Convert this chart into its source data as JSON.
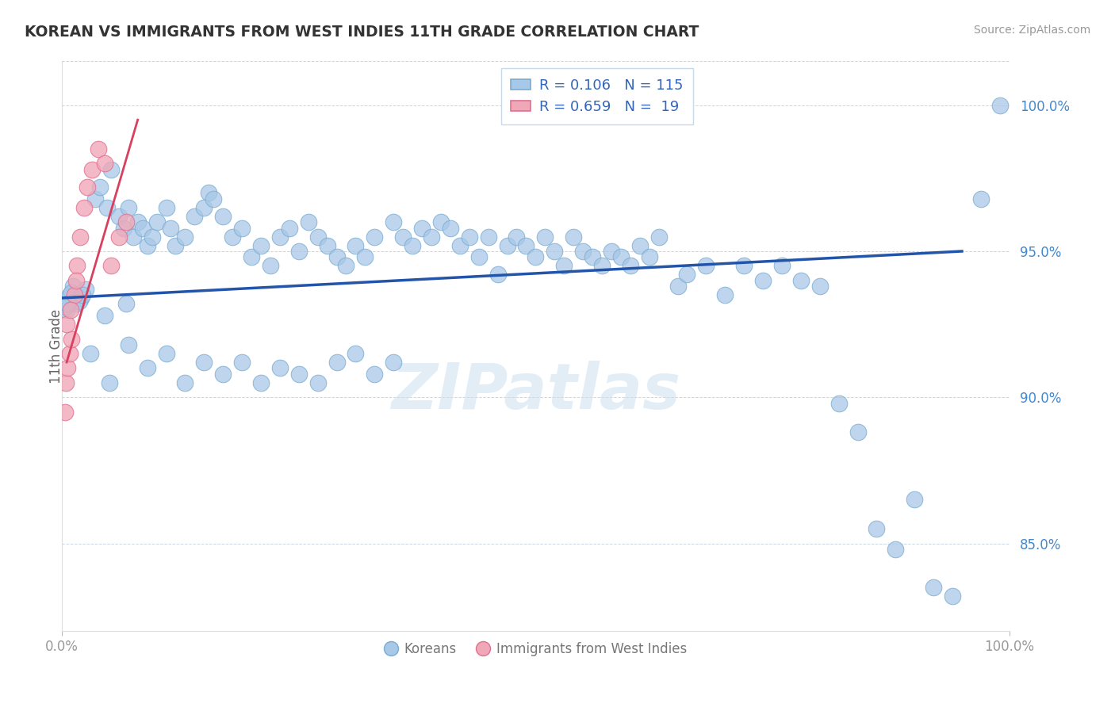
{
  "title": "KOREAN VS IMMIGRANTS FROM WEST INDIES 11TH GRADE CORRELATION CHART",
  "source": "Source: ZipAtlas.com",
  "ylabel": "11th Grade",
  "xlim": [
    0.0,
    100.0
  ],
  "ylim": [
    82.0,
    101.5
  ],
  "yticks": [
    85.0,
    90.0,
    95.0,
    100.0
  ],
  "blue_R": 0.106,
  "blue_N": 115,
  "pink_R": 0.659,
  "pink_N": 19,
  "blue_color": "#a8c8e8",
  "pink_color": "#f0a8b8",
  "blue_edge_color": "#7aacd0",
  "pink_edge_color": "#e07090",
  "blue_line_color": "#2255aa",
  "pink_line_color": "#d84060",
  "legend_label_blue": "Koreans",
  "legend_label_pink": "Immigrants from West Indies",
  "watermark": "ZIPatlas",
  "background_color": "#ffffff",
  "blue_trend_x0": 0.0,
  "blue_trend_y0": 93.4,
  "blue_trend_x1": 95.0,
  "blue_trend_y1": 95.0,
  "pink_trend_x0": 0.5,
  "pink_trend_y0": 91.2,
  "pink_trend_x1": 8.0,
  "pink_trend_y1": 99.5,
  "blue_scatter_x": [
    1.2,
    0.8,
    1.5,
    0.5,
    1.0,
    2.0,
    0.3,
    1.8,
    2.5,
    0.6,
    3.5,
    4.0,
    4.8,
    5.2,
    6.0,
    6.5,
    7.0,
    7.5,
    8.0,
    8.5,
    9.0,
    9.5,
    10.0,
    11.0,
    11.5,
    12.0,
    13.0,
    14.0,
    15.0,
    15.5,
    16.0,
    17.0,
    18.0,
    19.0,
    20.0,
    21.0,
    22.0,
    23.0,
    24.0,
    25.0,
    26.0,
    27.0,
    28.0,
    29.0,
    30.0,
    31.0,
    32.0,
    33.0,
    35.0,
    36.0,
    37.0,
    38.0,
    39.0,
    40.0,
    41.0,
    42.0,
    43.0,
    44.0,
    45.0,
    46.0,
    47.0,
    48.0,
    49.0,
    50.0,
    51.0,
    52.0,
    53.0,
    54.0,
    55.0,
    56.0,
    57.0,
    58.0,
    59.0,
    60.0,
    61.0,
    62.0,
    63.0,
    65.0,
    66.0,
    68.0,
    70.0,
    72.0,
    74.0,
    76.0,
    78.0,
    80.0,
    82.0,
    84.0,
    86.0,
    88.0,
    90.0,
    92.0,
    94.0,
    3.0,
    5.0,
    7.0,
    9.0,
    11.0,
    13.0,
    15.0,
    17.0,
    19.0,
    21.0,
    23.0,
    25.0,
    27.0,
    29.0,
    31.0,
    33.0,
    35.0,
    2.2,
    4.5,
    6.8,
    99.0,
    97.0
  ],
  "blue_scatter_y": [
    93.8,
    93.5,
    93.2,
    93.0,
    93.6,
    93.4,
    93.1,
    93.3,
    93.7,
    93.2,
    96.8,
    97.2,
    96.5,
    97.8,
    96.2,
    95.8,
    96.5,
    95.5,
    96.0,
    95.8,
    95.2,
    95.5,
    96.0,
    96.5,
    95.8,
    95.2,
    95.5,
    96.2,
    96.5,
    97.0,
    96.8,
    96.2,
    95.5,
    95.8,
    94.8,
    95.2,
    94.5,
    95.5,
    95.8,
    95.0,
    96.0,
    95.5,
    95.2,
    94.8,
    94.5,
    95.2,
    94.8,
    95.5,
    96.0,
    95.5,
    95.2,
    95.8,
    95.5,
    96.0,
    95.8,
    95.2,
    95.5,
    94.8,
    95.5,
    94.2,
    95.2,
    95.5,
    95.2,
    94.8,
    95.5,
    95.0,
    94.5,
    95.5,
    95.0,
    94.8,
    94.5,
    95.0,
    94.8,
    94.5,
    95.2,
    94.8,
    95.5,
    93.8,
    94.2,
    94.5,
    93.5,
    94.5,
    94.0,
    94.5,
    94.0,
    93.8,
    89.8,
    88.8,
    85.5,
    84.8,
    86.5,
    83.5,
    83.2,
    91.5,
    90.5,
    91.8,
    91.0,
    91.5,
    90.5,
    91.2,
    90.8,
    91.2,
    90.5,
    91.0,
    90.8,
    90.5,
    91.2,
    91.5,
    90.8,
    91.2,
    93.5,
    92.8,
    93.2,
    100.0,
    96.8
  ],
  "pink_scatter_x": [
    0.4,
    0.6,
    0.8,
    1.0,
    1.3,
    1.6,
    1.9,
    2.3,
    2.7,
    3.2,
    3.8,
    4.5,
    5.2,
    6.0,
    6.8,
    0.3,
    0.5,
    0.9,
    1.5
  ],
  "pink_scatter_y": [
    90.5,
    91.0,
    91.5,
    92.0,
    93.5,
    94.5,
    95.5,
    96.5,
    97.2,
    97.8,
    98.5,
    98.0,
    94.5,
    95.5,
    96.0,
    89.5,
    92.5,
    93.0,
    94.0
  ]
}
